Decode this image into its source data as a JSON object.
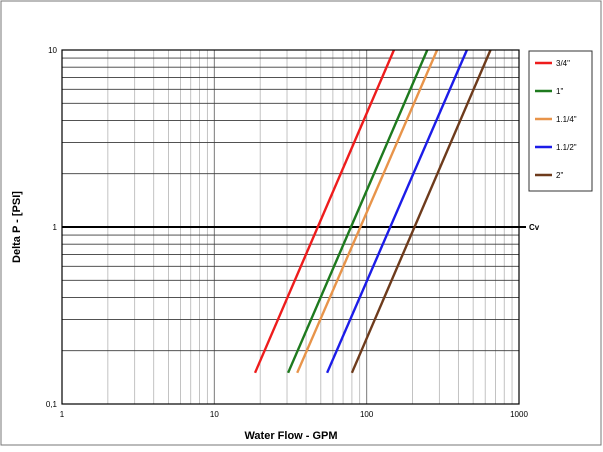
{
  "chart_data": {
    "type": "line",
    "title": "",
    "xlabel": "Water Flow  - GPM",
    "ylabel": "Delta P - [PSI]",
    "x_scale": "log",
    "y_scale": "log",
    "xlim": [
      1,
      1000
    ],
    "ylim": [
      0.1,
      10
    ],
    "x_ticks": [
      {
        "value": 1,
        "label": "1"
      },
      {
        "value": 10,
        "label": "10"
      },
      {
        "value": 100,
        "label": "100"
      },
      {
        "value": 1000,
        "label": "1000"
      }
    ],
    "y_ticks": [
      {
        "value": 0.1,
        "label": "0,1"
      },
      {
        "value": 1,
        "label": "1"
      },
      {
        "value": 10,
        "label": "10"
      }
    ],
    "grid": true,
    "legend_position": "right",
    "reference_line": {
      "y": 1,
      "label": "Cv"
    },
    "series": [
      {
        "name": "3/4\"",
        "color": "#ee1c1c",
        "x": [
          18.5,
          151
        ],
        "y": [
          0.15,
          10
        ]
      },
      {
        "name": "1\"",
        "color": "#1e7a1e",
        "x": [
          30.5,
          250
        ],
        "y": [
          0.15,
          10
        ]
      },
      {
        "name": "1.1/4\"",
        "color": "#e8944a",
        "x": [
          35,
          290
        ],
        "y": [
          0.15,
          10
        ]
      },
      {
        "name": "1.1/2\"",
        "color": "#1c1ce8",
        "x": [
          55,
          455
        ],
        "y": [
          0.15,
          10
        ]
      },
      {
        "name": "2\"",
        "color": "#6e3b1c",
        "x": [
          80,
          650
        ],
        "y": [
          0.15,
          10
        ]
      }
    ]
  }
}
